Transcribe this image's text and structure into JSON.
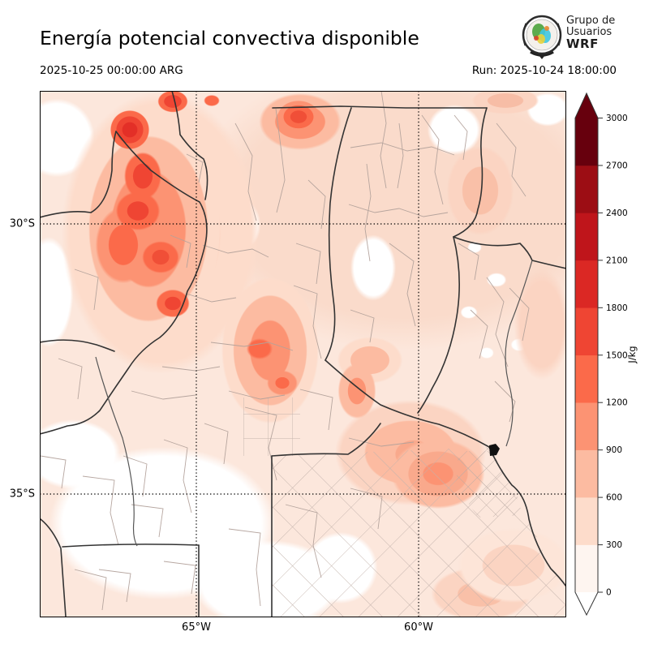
{
  "header": {
    "title": "Energía potencial convectiva disponible",
    "valid_time": "2025-10-25 00:00:00 ARG",
    "run_label": "Run: 2025-10-24 18:00:00",
    "logo": {
      "line1": "Grupo de",
      "line2": "Usuarios",
      "line3": "WRF"
    }
  },
  "axes": {
    "lat_ticks": [
      "30°S",
      "35°S"
    ],
    "lon_ticks": [
      "65°W",
      "60°W"
    ]
  },
  "colorbar": {
    "unit": "J/kg",
    "ticks": [
      "3000",
      "2700",
      "2400",
      "2100",
      "1800",
      "1500",
      "1200",
      "900",
      "600",
      "300",
      "0"
    ],
    "levels": [
      0,
      300,
      600,
      900,
      1200,
      1500,
      1800,
      2100,
      2400,
      2700,
      3000
    ],
    "colors_low_to_high": [
      "#fef5f0",
      "#fddccb",
      "#fcbba1",
      "#fc9373",
      "#fb6a4a",
      "#ef4533",
      "#db2824",
      "#bf151b",
      "#9c0d14",
      "#67000d"
    ],
    "over_color": "#67000d",
    "under_color": "#ffffff"
  }
}
